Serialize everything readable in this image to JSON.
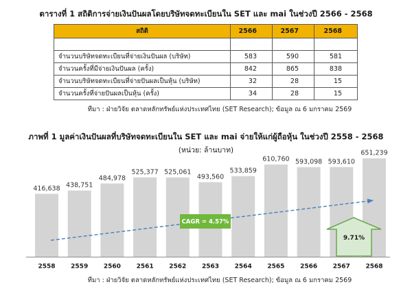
{
  "chart_data": [
    {
      "type": "table",
      "title": "ตารางที่ 1 สถิติการจ่ายเงินปันผลโดยบริษัทจดทะเบียนใน SET และ mai ในช่วงปี 2566 - 2568",
      "columns": [
        "สถิติ",
        "2566",
        "2567",
        "2568"
      ],
      "rows": [
        {
          "label": "จำนวนบริษัทจดทะเบียนที่จ่ายเงินปันผล (บริษัท)",
          "values": [
            583,
            590,
            581
          ]
        },
        {
          "label": "จำนวนครั้งที่มีจ่ายเงินปันผล (ครั้ง)",
          "values": [
            842,
            865,
            838
          ]
        },
        {
          "label": "จำนวนบริษัทจดทะเบียนที่จ่ายปันผลเป็นหุ้น (บริษัท)",
          "values": [
            32,
            28,
            15
          ]
        },
        {
          "label": "จำนวนครั้งที่จ่ายปันผลเป็นหุ้น (ครั้ง)",
          "values": [
            34,
            28,
            15
          ]
        }
      ],
      "source": "ที่มา : ฝ่ายวิจัย ตลาดหลักทรัพย์แห่งประเทศไทย (SET Research); ข้อมูล ณ 6 มกราคม 2569",
      "colors": {
        "header": "#f2b200",
        "border": "#595959"
      }
    },
    {
      "type": "bar",
      "title": "ภาพที่ 1 มูลค่าเงินปันผลที่บริษัทจดทะเบียนใน SET และ mai จ่ายให้แก่ผู้ถือหุ้น ในช่วงปี 2558 - 2568",
      "subtitle": "(หน่วย: ล้านบาท)",
      "categories": [
        "2558",
        "2559",
        "2560",
        "2561",
        "2562",
        "2563",
        "2564",
        "2565",
        "2566",
        "2567",
        "2568"
      ],
      "values": [
        416638,
        438751,
        484978,
        525377,
        525061,
        493560,
        533859,
        610760,
        593098,
        593610,
        651239
      ],
      "ylim": [
        0,
        700000
      ],
      "grid": false,
      "cagr_label": "CAGR = 4.57%",
      "growth_label": "9.71%",
      "source": "ที่มา : ฝ่ายวิจัย ตลาดหลักทรัพย์แห่งประเทศไทย (SET Research); ข้อมูล ณ 6 มกราคม 2569",
      "colors": {
        "bar": "#d4d4d4",
        "trend_line": "#4a7ebb",
        "cagr_box": "#70b83c",
        "up_arrow_fill": "#d9ead3",
        "up_arrow_stroke": "#6aa84f"
      }
    }
  ]
}
